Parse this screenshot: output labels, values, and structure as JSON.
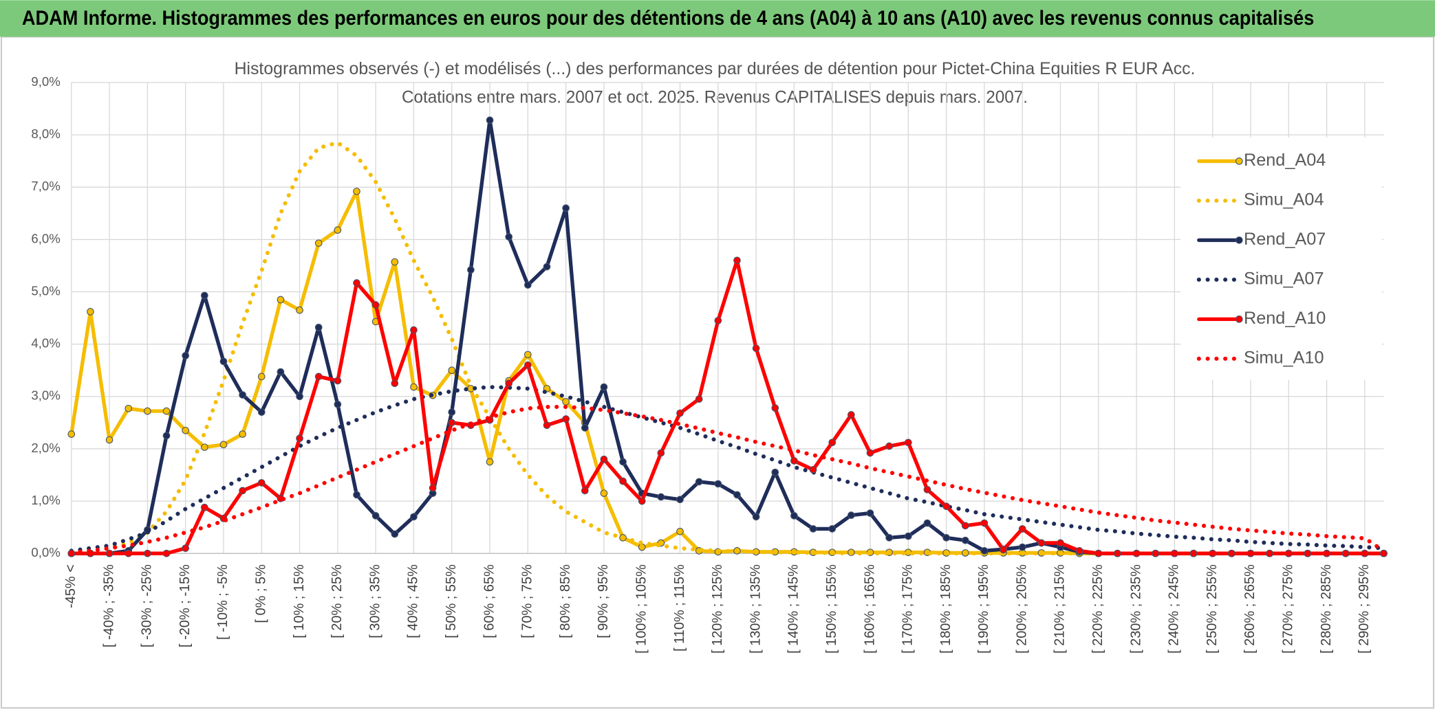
{
  "chart_data": {
    "type": "line",
    "title": "ADAM Informe. Histogrammes des performances en euros pour des détentions de 4 ans (A04) à 10 ans (A10) avec les revenus connus capitalisés",
    "subtitle": [
      "Histogrammes observés (-) et modélisés (...) des performances par durées de détention pour Pictet-China Equities R EUR Acc.",
      "Cotations entre mars. 2007 et oct. 2025. Revenus CAPITALISES depuis mars. 2007."
    ],
    "categories": [
      "-45% <",
      null,
      "[ -40% ; -35%",
      null,
      "[ -30% ; -25%",
      null,
      "[ -20% ; -15%",
      null,
      "[ -10% ; -5%",
      null,
      "[ 0% ; 5%",
      null,
      "[ 10% ; 15%",
      null,
      "[ 20% ; 25%",
      null,
      "[ 30% ; 35%",
      null,
      "[ 40% ; 45%",
      null,
      "[ 50% ; 55%",
      null,
      "[ 60% ; 65%",
      null,
      "[ 70% ; 75%",
      null,
      "[ 80% ; 85%",
      null,
      "[ 90% ; 95%",
      null,
      "[ 100% ; 105%",
      null,
      "[ 110% ; 115%",
      null,
      "[ 120% ; 125%",
      null,
      "[ 130% ; 135%",
      null,
      "[ 140% ; 145%",
      null,
      "[ 150% ; 155%",
      null,
      "[ 160% ; 165%",
      null,
      "[ 170% ; 175%",
      null,
      "[ 180% ; 185%",
      null,
      "[ 190% ; 195%",
      null,
      "[ 200% ; 205%",
      null,
      "[ 210% ; 215%",
      null,
      "[ 220% ; 225%",
      null,
      "[ 230% ; 235%",
      null,
      "[ 240% ; 245%",
      null,
      "[ 250% ; 255%",
      null,
      "[ 260% ; 265%",
      null,
      "[ 270% ; 275%",
      null,
      "[ 280% ; 285%",
      null,
      "[ 290% ; 295%",
      null
    ],
    "series": [
      {
        "name": "Rend_A04",
        "color": "#f5bd00",
        "dash": "solid",
        "values": [
          2.28,
          4.62,
          2.17,
          2.77,
          2.72,
          2.72,
          2.35,
          2.03,
          2.08,
          2.28,
          3.38,
          4.85,
          4.65,
          5.93,
          6.18,
          6.92,
          4.43,
          5.57,
          3.18,
          3.02,
          3.5,
          3.15,
          1.75,
          3.3,
          3.8,
          3.15,
          2.9,
          2.5,
          1.15,
          0.3,
          0.12,
          0.2,
          0.42,
          0.05,
          0.03,
          0.05,
          0.03,
          0.03,
          0.03,
          0.02,
          0.02,
          0.02,
          0.02,
          0.02,
          0.02,
          0.02,
          0.01,
          0.01,
          0.01,
          0.01,
          0.01,
          0.01,
          0.01,
          0,
          0,
          0,
          0,
          0,
          0,
          0,
          0,
          0,
          0,
          0,
          0,
          0,
          0,
          0,
          0,
          0
        ]
      },
      {
        "name": "Simu_A04",
        "color": "#f5bd00",
        "dash": "dotted",
        "values": [
          0.02,
          0.05,
          0.1,
          0.2,
          0.4,
          0.8,
          1.4,
          2.3,
          3.3,
          4.4,
          5.4,
          6.5,
          7.3,
          7.75,
          7.85,
          7.6,
          7.1,
          6.4,
          5.6,
          4.9,
          4.1,
          3.2,
          2.6,
          2.0,
          1.5,
          1.1,
          0.8,
          0.6,
          0.4,
          0.3,
          0.2,
          0.15,
          0.1,
          0.07,
          0.05,
          0.04,
          0.03,
          0.02,
          0.02,
          0.01,
          0.01,
          0,
          0,
          0,
          0,
          0,
          0,
          0,
          0,
          0,
          0,
          0,
          0,
          0,
          0,
          0,
          0,
          0,
          0,
          0,
          0,
          0,
          0,
          0,
          0,
          0,
          0,
          0,
          0,
          0
        ]
      },
      {
        "name": "Rend_A07",
        "color": "#1f2d5a",
        "dash": "solid",
        "values": [
          0,
          0,
          0,
          0.05,
          0.45,
          2.25,
          3.78,
          4.93,
          3.67,
          3.03,
          2.7,
          3.47,
          3.0,
          4.32,
          2.85,
          1.12,
          0.72,
          0.37,
          0.7,
          1.15,
          2.7,
          5.42,
          8.28,
          6.05,
          5.13,
          5.48,
          6.6,
          2.4,
          3.18,
          1.75,
          1.15,
          1.08,
          1.03,
          1.37,
          1.33,
          1.12,
          0.7,
          1.55,
          0.72,
          0.47,
          0.47,
          0.73,
          0.77,
          0.3,
          0.33,
          0.58,
          0.3,
          0.25,
          0.05,
          0.08,
          0.12,
          0.2,
          0.12,
          0.03,
          0,
          0,
          0,
          0,
          0,
          0,
          0,
          0,
          0,
          0,
          0,
          0,
          0,
          0,
          0,
          0
        ]
      },
      {
        "name": "Simu_A07",
        "color": "#1f2d5a",
        "dash": "dotted",
        "values": [
          0.05,
          0.1,
          0.15,
          0.27,
          0.4,
          0.62,
          0.85,
          1.05,
          1.25,
          1.45,
          1.65,
          1.85,
          2.05,
          2.23,
          2.4,
          2.55,
          2.7,
          2.83,
          2.95,
          3.03,
          3.1,
          3.15,
          3.18,
          3.17,
          3.15,
          3.08,
          3.0,
          2.9,
          2.8,
          2.7,
          2.6,
          2.5,
          2.4,
          2.28,
          2.15,
          2.03,
          1.9,
          1.78,
          1.65,
          1.55,
          1.45,
          1.35,
          1.25,
          1.15,
          1.05,
          0.98,
          0.9,
          0.83,
          0.75,
          0.7,
          0.65,
          0.6,
          0.55,
          0.5,
          0.45,
          0.42,
          0.38,
          0.35,
          0.32,
          0.3,
          0.27,
          0.25,
          0.22,
          0.2,
          0.18,
          0.17,
          0.15,
          0.14,
          0.12,
          0.1
        ]
      },
      {
        "name": "Rend_A10",
        "color": "#ff0000",
        "dash": "solid",
        "values": [
          0,
          0,
          0,
          0,
          0,
          0,
          0.1,
          0.88,
          0.67,
          1.2,
          1.35,
          1.05,
          2.2,
          3.38,
          3.3,
          5.17,
          4.75,
          3.25,
          4.27,
          1.25,
          2.5,
          2.45,
          2.55,
          3.25,
          3.6,
          2.45,
          2.57,
          1.2,
          1.8,
          1.38,
          1.0,
          1.92,
          2.68,
          2.95,
          4.45,
          5.6,
          3.92,
          2.78,
          1.77,
          1.6,
          2.12,
          2.65,
          1.92,
          2.05,
          2.12,
          1.22,
          0.9,
          0.53,
          0.58,
          0.07,
          0.47,
          0.2,
          0.2,
          0.05,
          0,
          0,
          0,
          0,
          0,
          0,
          0,
          0,
          0,
          0,
          0,
          0,
          0,
          0,
          0,
          0
        ]
      },
      {
        "name": "Simu_A10",
        "color": "#ff0000",
        "dash": "dotted",
        "values": [
          0.02,
          0.05,
          0.1,
          0.15,
          0.22,
          0.3,
          0.4,
          0.5,
          0.62,
          0.75,
          0.88,
          1.02,
          1.15,
          1.3,
          1.45,
          1.6,
          1.75,
          1.9,
          2.05,
          2.2,
          2.35,
          2.48,
          2.6,
          2.7,
          2.77,
          2.8,
          2.8,
          2.78,
          2.74,
          2.68,
          2.62,
          2.55,
          2.47,
          2.39,
          2.3,
          2.22,
          2.13,
          2.05,
          1.97,
          1.88,
          1.8,
          1.72,
          1.63,
          1.55,
          1.47,
          1.39,
          1.31,
          1.23,
          1.16,
          1.09,
          1.02,
          0.96,
          0.9,
          0.84,
          0.78,
          0.73,
          0.68,
          0.63,
          0.59,
          0.55,
          0.51,
          0.47,
          0.44,
          0.41,
          0.38,
          0.36,
          0.33,
          0.31,
          0.29,
          0.05
        ]
      }
    ],
    "ylim": [
      0,
      9
    ],
    "yticks": [
      {
        "value": 0,
        "label": "0,0%"
      },
      {
        "value": 1,
        "label": "1,0%"
      },
      {
        "value": 2,
        "label": "2,0%"
      },
      {
        "value": 3,
        "label": "3,0%"
      },
      {
        "value": 4,
        "label": "4,0%"
      },
      {
        "value": 5,
        "label": "5,0%"
      },
      {
        "value": 6,
        "label": "6,0%"
      },
      {
        "value": 7,
        "label": "7,0%"
      },
      {
        "value": 8,
        "label": "8,0%"
      },
      {
        "value": 9,
        "label": "9,0%"
      }
    ],
    "grid": true,
    "legend": "right"
  }
}
